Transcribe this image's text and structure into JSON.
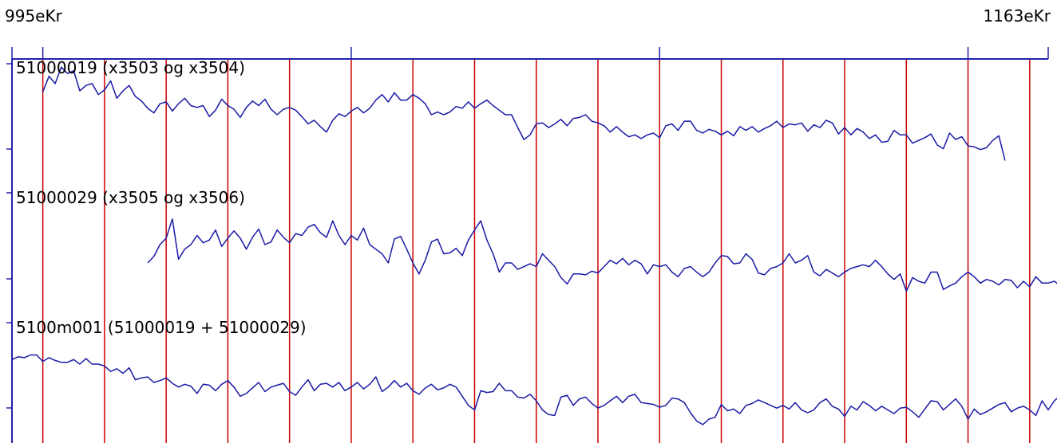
{
  "chart_data": {
    "type": "line",
    "x_start_label": "995eKr",
    "x_end_label": "1163eKr",
    "x_start": 995,
    "x_end": 1163,
    "colors": {
      "axis": "#2222aa",
      "grid": "#cc0000",
      "series": "#1a1aa6",
      "text": "#000000"
    },
    "series": [
      {
        "name": "51000019 (x3503 og x3504)",
        "start": 1000,
        "values": [
          0.65,
          0.82,
          0.74,
          0.92,
          0.85,
          0.88,
          0.66,
          0.72,
          0.74,
          0.62,
          0.67,
          0.77,
          0.58,
          0.66,
          0.72,
          0.6,
          0.55,
          0.47,
          0.42,
          0.52,
          0.54,
          0.44,
          0.52,
          0.58,
          0.5,
          0.48,
          0.5,
          0.38,
          0.45,
          0.57,
          0.5,
          0.46,
          0.37,
          0.48,
          0.55,
          0.5,
          0.57,
          0.46,
          0.4,
          0.46,
          0.48,
          0.45,
          0.38,
          0.3,
          0.34,
          0.27,
          0.21,
          0.34,
          0.41,
          0.38,
          0.44,
          0.48,
          0.42,
          0.47,
          0.56,
          0.62,
          0.54,
          0.64,
          0.56,
          0.56,
          0.62,
          0.58,
          0.52,
          0.4,
          0.43,
          0.4,
          0.43,
          0.49,
          0.47,
          0.54,
          0.47,
          0.52,
          0.56,
          0.5,
          0.45,
          0.4,
          0.4,
          0.26,
          0.13,
          0.18,
          0.3,
          0.31,
          0.26,
          0.3,
          0.35,
          0.28,
          0.36,
          0.37,
          0.4,
          0.33,
          0.31,
          0.28,
          0.21,
          0.27,
          0.21,
          0.16,
          0.18,
          0.14,
          0.18,
          0.2,
          0.15,
          0.28,
          0.3,
          0.23,
          0.33,
          0.33,
          0.23,
          0.2,
          0.24,
          0.22,
          0.18,
          0.22,
          0.17,
          0.27,
          0.23,
          0.27,
          0.21,
          0.25,
          0.28,
          0.33,
          0.26,
          0.3,
          0.29,
          0.31,
          0.22,
          0.29,
          0.26,
          0.34,
          0.31,
          0.19,
          0.26,
          0.18,
          0.25,
          0.21,
          0.14,
          0.18,
          0.1,
          0.11,
          0.23,
          0.18,
          0.18,
          0.09,
          0.12,
          0.15,
          0.19,
          0.07,
          0.03,
          0.2,
          0.13,
          0.16,
          0.06,
          0.05,
          0.02,
          0.04,
          0.12,
          0.17,
          -0.1
        ]
      },
      {
        "name": "51000029 (x3505 og x3506)",
        "start": 1017,
        "values": [
          0.2,
          0.27,
          0.4,
          0.47,
          0.68,
          0.24,
          0.35,
          0.4,
          0.5,
          0.42,
          0.45,
          0.56,
          0.38,
          0.47,
          0.55,
          0.47,
          0.35,
          0.48,
          0.57,
          0.4,
          0.43,
          0.56,
          0.48,
          0.42,
          0.52,
          0.5,
          0.59,
          0.62,
          0.53,
          0.48,
          0.66,
          0.5,
          0.4,
          0.5,
          0.45,
          0.58,
          0.4,
          0.35,
          0.3,
          0.2,
          0.46,
          0.49,
          0.35,
          0.2,
          0.08,
          0.23,
          0.43,
          0.46,
          0.3,
          0.31,
          0.36,
          0.28,
          0.45,
          0.56,
          0.66,
          0.45,
          0.3,
          0.1,
          0.2,
          0.2,
          0.13,
          0.16,
          0.19,
          0.16,
          0.3,
          0.23,
          0.16,
          0.04,
          -0.03,
          0.08,
          0.08,
          0.07,
          0.11,
          0.09,
          0.16,
          0.23,
          0.19,
          0.25,
          0.18,
          0.23,
          0.19,
          0.08,
          0.18,
          0.16,
          0.18,
          0.1,
          0.05,
          0.14,
          0.16,
          0.1,
          0.05,
          0.1,
          0.2,
          0.28,
          0.27,
          0.19,
          0.2,
          0.3,
          0.24,
          0.09,
          0.07,
          0.14,
          0.16,
          0.2,
          0.3,
          0.2,
          0.23,
          0.28,
          0.1,
          0.06,
          0.13,
          0.09,
          0.05,
          0.1,
          0.14,
          0.16,
          0.18,
          0.16,
          0.23,
          0.16,
          0.08,
          0.02,
          0.08,
          -0.11,
          0.04,
          0.0,
          -0.02,
          0.1,
          0.1,
          -0.09,
          -0.05,
          -0.02,
          0.05,
          0.1,
          0.05,
          -0.02,
          0.02,
          0.0,
          -0.04,
          0.02,
          0.01,
          -0.07,
          0.0,
          -0.06,
          0.05,
          -0.02,
          -0.02,
          0.0,
          -0.05,
          0.1,
          0.12,
          0.16,
          0.25,
          0.13,
          0.26,
          0.23,
          0.28,
          0.2,
          0.12,
          0.27,
          0.32,
          0.23,
          0.3,
          0.3,
          0.2
        ]
      },
      {
        "name": "5100m001 (51000019 + 51000029)",
        "start": 995,
        "values": [
          0.25,
          0.28,
          0.27,
          0.3,
          0.3,
          0.23,
          0.27,
          0.24,
          0.22,
          0.22,
          0.25,
          0.2,
          0.26,
          0.2,
          0.2,
          0.18,
          0.12,
          0.15,
          0.1,
          0.16,
          0.03,
          0.05,
          0.06,
          0.0,
          0.02,
          0.05,
          -0.01,
          -0.05,
          -0.02,
          -0.04,
          -0.12,
          -0.02,
          -0.03,
          -0.09,
          -0.02,
          0.02,
          -0.05,
          -0.15,
          -0.12,
          -0.06,
          0.0,
          -0.1,
          -0.05,
          -0.03,
          -0.01,
          -0.1,
          -0.14,
          -0.05,
          0.03,
          -0.09,
          -0.02,
          -0.01,
          -0.05,
          0.0,
          -0.09,
          -0.05,
          0.0,
          -0.07,
          -0.02,
          0.06,
          -0.1,
          -0.05,
          0.02,
          -0.05,
          -0.01,
          -0.09,
          -0.13,
          -0.06,
          -0.02,
          -0.08,
          -0.06,
          -0.02,
          -0.05,
          -0.15,
          -0.25,
          -0.3,
          -0.09,
          -0.11,
          -0.1,
          -0.01,
          -0.09,
          -0.09,
          -0.16,
          -0.17,
          -0.13,
          -0.2,
          -0.3,
          -0.35,
          -0.36,
          -0.16,
          -0.14,
          -0.25,
          -0.18,
          -0.16,
          -0.23,
          -0.28,
          -0.25,
          -0.2,
          -0.15,
          -0.22,
          -0.15,
          -0.13,
          -0.22,
          -0.23,
          -0.24,
          -0.27,
          -0.25,
          -0.17,
          -0.18,
          -0.22,
          -0.33,
          -0.42,
          -0.46,
          -0.4,
          -0.38,
          -0.24,
          -0.31,
          -0.29,
          -0.34,
          -0.25,
          -0.23,
          -0.19,
          -0.22,
          -0.25,
          -0.28,
          -0.25,
          -0.29,
          -0.22,
          -0.3,
          -0.33,
          -0.3,
          -0.22,
          -0.18,
          -0.26,
          -0.29,
          -0.37,
          -0.26,
          -0.3,
          -0.21,
          -0.25,
          -0.31,
          -0.26,
          -0.3,
          -0.34,
          -0.28,
          -0.27,
          -0.32,
          -0.38,
          -0.29,
          -0.2,
          -0.21,
          -0.3,
          -0.24,
          -0.18,
          -0.26,
          -0.4,
          -0.29,
          -0.35,
          -0.32,
          -0.28,
          -0.24,
          -0.22,
          -0.32,
          -0.28,
          -0.26,
          -0.3,
          -0.36,
          -0.2,
          -0.3,
          -0.2,
          -0.14,
          -0.22,
          -0.18,
          -0.1,
          -0.04,
          -0.08,
          -0.02,
          -0.14,
          -0.06,
          -0.04,
          -0.09
        ]
      }
    ]
  }
}
